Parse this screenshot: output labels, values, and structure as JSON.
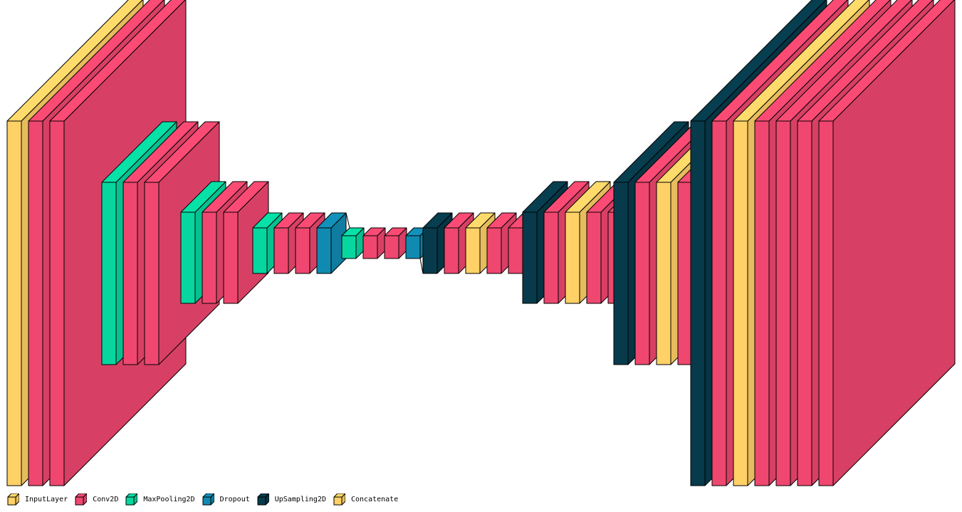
{
  "colors": {
    "InputLayer": "#ffd166",
    "Conv2D": "#ef476f",
    "MaxPooling2D": "#06d6a0",
    "Dropout": "#118ab2",
    "UpSampling2D": "#073b4c",
    "Concatenate": "#ffd166"
  },
  "legend": {
    "items": [
      {
        "label": "InputLayer",
        "color_key": "InputLayer"
      },
      {
        "label": "Conv2D",
        "color_key": "Conv2D"
      },
      {
        "label": "MaxPooling2D",
        "color_key": "MaxPooling2D"
      },
      {
        "label": "Dropout",
        "color_key": "Dropout"
      },
      {
        "label": "UpSampling2D",
        "color_key": "UpSampling2D"
      },
      {
        "label": "Concatenate",
        "color_key": "Concatenate"
      }
    ]
  },
  "network": {
    "layers": [
      "InputLayer",
      "Conv2D",
      "Conv2D",
      "MaxPooling2D",
      "Conv2D",
      "Conv2D",
      "MaxPooling2D",
      "Conv2D",
      "Conv2D",
      "MaxPooling2D",
      "Conv2D",
      "Conv2D",
      "Dropout",
      "MaxPooling2D",
      "Conv2D",
      "Conv2D",
      "Dropout",
      "UpSampling2D",
      "Conv2D",
      "Concatenate",
      "Conv2D",
      "Conv2D",
      "UpSampling2D",
      "Conv2D",
      "Concatenate",
      "Conv2D",
      "Conv2D",
      "UpSampling2D",
      "Conv2D",
      "Concatenate",
      "Conv2D",
      "UpSampling2D",
      "Conv2D",
      "Concatenate",
      "Conv2D",
      "Conv2D",
      "Conv2D",
      "Conv2D"
    ]
  }
}
